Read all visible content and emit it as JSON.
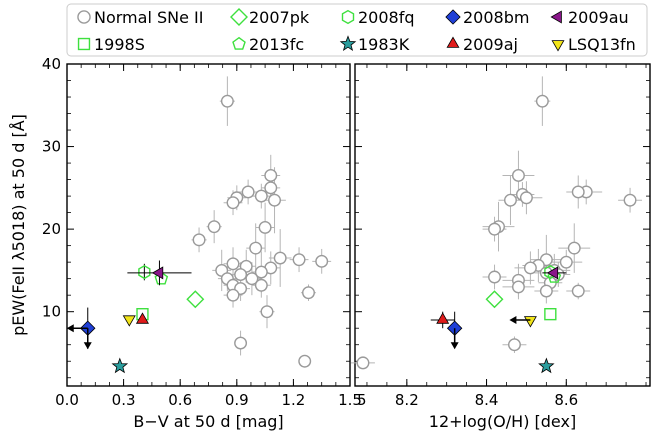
{
  "chart_data": [
    {
      "type": "scatter",
      "xlabel": "B−V at 50 d [mag]",
      "ylabel": "pEW(FeII λ5018) at 50 d [Å]",
      "xlim": [
        0.0,
        1.5
      ],
      "ylim": [
        1.0,
        40.0
      ],
      "xticks": [
        0.0,
        0.3,
        0.6,
        0.9,
        1.2,
        1.5
      ],
      "xtick_labels": [
        "0.0",
        "0.3",
        "0.6",
        "0.9",
        "1.2",
        "1.5"
      ],
      "yticks": [
        10,
        20,
        30,
        40
      ],
      "ytick_labels": [
        "10",
        "20",
        "30",
        "40"
      ],
      "series": [
        {
          "name": "Normal SNe II",
          "marker": "circle-open",
          "color": "#a9a9a9",
          "points": [
            {
              "x": 0.85,
              "y": 35.5,
              "xerr": 0.04,
              "yerr": 3.0
            },
            {
              "x": 1.08,
              "y": 26.5,
              "xerr": 0.05,
              "yerr": 2.5
            },
            {
              "x": 1.08,
              "y": 25.0,
              "xerr": 0.05,
              "yerr": 2.0
            },
            {
              "x": 0.96,
              "y": 24.5,
              "xerr": 0.05,
              "yerr": 1.5
            },
            {
              "x": 1.03,
              "y": 24.0,
              "xerr": 0.06,
              "yerr": 1.5
            },
            {
              "x": 0.9,
              "y": 23.8,
              "xerr": 0.05,
              "yerr": 1.5
            },
            {
              "x": 1.1,
              "y": 23.5,
              "xerr": 0.06,
              "yerr": 4.0
            },
            {
              "x": 0.88,
              "y": 23.2,
              "xerr": 0.05,
              "yerr": 1.5
            },
            {
              "x": 0.78,
              "y": 20.3,
              "xerr": 0.04,
              "yerr": 2.0
            },
            {
              "x": 1.05,
              "y": 20.2,
              "xerr": 0.05,
              "yerr": 3.0
            },
            {
              "x": 0.7,
              "y": 18.7,
              "xerr": 0.04,
              "yerr": 1.5
            },
            {
              "x": 1.0,
              "y": 17.7,
              "xerr": 0.05,
              "yerr": 3.0
            },
            {
              "x": 1.13,
              "y": 16.5,
              "xerr": 0.06,
              "yerr": 3.5
            },
            {
              "x": 1.23,
              "y": 16.3,
              "xerr": 0.05,
              "yerr": 1.5
            },
            {
              "x": 1.35,
              "y": 16.1,
              "xerr": 0.05,
              "yerr": 1.5
            },
            {
              "x": 0.88,
              "y": 15.8,
              "xerr": 0.05,
              "yerr": 2.0
            },
            {
              "x": 0.95,
              "y": 15.5,
              "xerr": 0.05,
              "yerr": 2.0
            },
            {
              "x": 1.08,
              "y": 15.3,
              "xerr": 0.05,
              "yerr": 2.0
            },
            {
              "x": 0.82,
              "y": 15.0,
              "xerr": 0.05,
              "yerr": 2.5
            },
            {
              "x": 1.03,
              "y": 14.8,
              "xerr": 0.05,
              "yerr": 2.5
            },
            {
              "x": 0.92,
              "y": 14.5,
              "xerr": 0.05,
              "yerr": 1.5
            },
            {
              "x": 0.85,
              "y": 14.0,
              "xerr": 0.05,
              "yerr": 1.5
            },
            {
              "x": 0.98,
              "y": 14.0,
              "xerr": 0.05,
              "yerr": 2.0
            },
            {
              "x": 0.88,
              "y": 13.2,
              "xerr": 0.05,
              "yerr": 1.5
            },
            {
              "x": 1.03,
              "y": 13.2,
              "xerr": 0.05,
              "yerr": 1.5
            },
            {
              "x": 0.92,
              "y": 12.8,
              "xerr": 0.05,
              "yerr": 1.5
            },
            {
              "x": 1.28,
              "y": 12.3,
              "xerr": 0.04,
              "yerr": 1.0
            },
            {
              "x": 0.88,
              "y": 12.0,
              "xerr": 0.05,
              "yerr": 1.5
            },
            {
              "x": 1.06,
              "y": 10.0,
              "xerr": 0.04,
              "yerr": 2.0
            },
            {
              "x": 0.92,
              "y": 6.2,
              "xerr": 0.03,
              "yerr": 1.5
            },
            {
              "x": 1.26,
              "y": 4.0,
              "xerr": 0.03,
              "yerr": 0.5
            }
          ]
        },
        {
          "name": "1998S",
          "marker": "square-open",
          "color": "#3ee03e",
          "points": [
            {
              "x": 0.4,
              "y": 9.7,
              "xerr": 0.0,
              "yerr": 0.0
            }
          ]
        },
        {
          "name": "2007pk",
          "marker": "diamond-open",
          "color": "#3ee03e",
          "points": [
            {
              "x": 0.68,
              "y": 11.5,
              "xerr": 0.0,
              "yerr": 0.0
            }
          ]
        },
        {
          "name": "2013fc",
          "marker": "pentagon-open",
          "color": "#3ee03e",
          "points": [
            {
              "x": 0.5,
              "y": 14.0,
              "xerr": 0.0,
              "yerr": 0.0
            }
          ]
        },
        {
          "name": "2008fq",
          "marker": "hexagon-open",
          "color": "#3ee03e",
          "points": [
            {
              "x": 0.41,
              "y": 14.8,
              "xerr": 0.0,
              "yerr": 1.0
            }
          ]
        },
        {
          "name": "1983K",
          "marker": "star",
          "color": "#2a9d9d",
          "points": [
            {
              "x": 0.28,
              "y": 3.4,
              "xerr": 0.0,
              "yerr": 0.0
            }
          ]
        },
        {
          "name": "2008bm",
          "marker": "diamond",
          "color": "#1f3fd6",
          "points": [
            {
              "x": 0.11,
              "y": 8.0,
              "xerr": 0.0,
              "yerr": 2.5
            }
          ]
        },
        {
          "name": "2009aj",
          "marker": "triangle-up",
          "color": "#e01b1b",
          "points": [
            {
              "x": 0.4,
              "y": 9.0,
              "xerr": 0.0,
              "yerr": 0.0
            }
          ]
        },
        {
          "name": "2009au",
          "marker": "triangle-left",
          "color": "#8a168a",
          "points": [
            {
              "x": 0.49,
              "y": 14.7,
              "xerr": 0.17,
              "yerr": 1.5
            }
          ]
        },
        {
          "name": "LSQ13fn",
          "marker": "triangle-down",
          "color": "#f2e51a",
          "points": [
            {
              "x": 0.33,
              "y": 9.1,
              "xerr": 0.0,
              "yerr": 0.0
            }
          ]
        }
      ],
      "limits": [
        {
          "x": 0.11,
          "y": 8.0,
          "direction": "left"
        },
        {
          "x": 0.11,
          "y": 8.0,
          "direction": "down"
        }
      ]
    },
    {
      "type": "scatter",
      "xlabel": "12+log(O/H) [dex]",
      "ylabel": "",
      "xlim": [
        8.07,
        8.81
      ],
      "ylim": [
        1.0,
        40.0
      ],
      "xticks": [
        8.2,
        8.4,
        8.6
      ],
      "xtick_labels": [
        "8.2",
        "8.4",
        "8.6"
      ],
      "extra_tick_label": "5",
      "yticks": [
        10,
        20,
        30,
        40
      ],
      "series": [
        {
          "name": "Normal SNe II",
          "marker": "circle-open",
          "color": "#a9a9a9",
          "points": [
            {
              "x": 8.54,
              "y": 35.5,
              "xerr": 0.02,
              "yerr": 3.0
            },
            {
              "x": 8.48,
              "y": 26.5,
              "xerr": 0.04,
              "yerr": 3.0
            },
            {
              "x": 8.65,
              "y": 24.5,
              "xerr": 0.04,
              "yerr": 1.5
            },
            {
              "x": 8.63,
              "y": 24.5,
              "xerr": 0.03,
              "yerr": 2.0
            },
            {
              "x": 8.49,
              "y": 24.2,
              "xerr": 0.03,
              "yerr": 1.5
            },
            {
              "x": 8.5,
              "y": 23.8,
              "xerr": 0.04,
              "yerr": 2.0
            },
            {
              "x": 8.46,
              "y": 23.5,
              "xerr": 0.03,
              "yerr": 3.0
            },
            {
              "x": 8.76,
              "y": 23.5,
              "xerr": 0.03,
              "yerr": 1.5
            },
            {
              "x": 8.43,
              "y": 20.3,
              "xerr": 0.04,
              "yerr": 3.0
            },
            {
              "x": 8.42,
              "y": 20.0,
              "xerr": 0.03,
              "yerr": 1.5
            },
            {
              "x": 8.62,
              "y": 17.7,
              "xerr": 0.04,
              "yerr": 3.0
            },
            {
              "x": 8.55,
              "y": 16.3,
              "xerr": 0.04,
              "yerr": 3.0
            },
            {
              "x": 8.6,
              "y": 16.0,
              "xerr": 0.04,
              "yerr": 1.5
            },
            {
              "x": 8.53,
              "y": 15.6,
              "xerr": 0.04,
              "yerr": 2.0
            },
            {
              "x": 8.51,
              "y": 15.3,
              "xerr": 0.04,
              "yerr": 2.0
            },
            {
              "x": 8.57,
              "y": 15.0,
              "xerr": 0.04,
              "yerr": 2.0
            },
            {
              "x": 8.55,
              "y": 14.7,
              "xerr": 0.03,
              "yerr": 2.0
            },
            {
              "x": 8.58,
              "y": 14.5,
              "xerr": 0.03,
              "yerr": 1.5
            },
            {
              "x": 8.42,
              "y": 14.2,
              "xerr": 0.03,
              "yerr": 1.5
            },
            {
              "x": 8.48,
              "y": 13.8,
              "xerr": 0.04,
              "yerr": 2.0
            },
            {
              "x": 8.56,
              "y": 13.5,
              "xerr": 0.03,
              "yerr": 1.5
            },
            {
              "x": 8.48,
              "y": 13.0,
              "xerr": 0.04,
              "yerr": 1.5
            },
            {
              "x": 8.55,
              "y": 12.5,
              "xerr": 0.03,
              "yerr": 1.5
            },
            {
              "x": 8.63,
              "y": 12.5,
              "xerr": 0.03,
              "yerr": 1.0
            },
            {
              "x": 8.47,
              "y": 6.0,
              "xerr": 0.03,
              "yerr": 1.0
            },
            {
              "x": 8.09,
              "y": 3.8,
              "xerr": 0.03,
              "yerr": 0.5
            }
          ]
        },
        {
          "name": "1998S",
          "marker": "square-open",
          "color": "#3ee03e",
          "points": [
            {
              "x": 8.56,
              "y": 9.7,
              "xerr": 0.0,
              "yerr": 0.0
            }
          ]
        },
        {
          "name": "2007pk",
          "marker": "diamond-open",
          "color": "#3ee03e",
          "points": [
            {
              "x": 8.42,
              "y": 11.5,
              "xerr": 0.0,
              "yerr": 0.0
            }
          ]
        },
        {
          "name": "2013fc",
          "marker": "pentagon-open",
          "color": "#3ee03e",
          "points": [
            {
              "x": 8.57,
              "y": 14.2,
              "xerr": 0.0,
              "yerr": 0.0
            }
          ]
        },
        {
          "name": "2008fq",
          "marker": "hexagon-open",
          "color": "#3ee03e",
          "points": [
            {
              "x": 8.56,
              "y": 14.8,
              "xerr": 0.0,
              "yerr": 0.0
            }
          ]
        },
        {
          "name": "1983K",
          "marker": "star",
          "color": "#2a9d9d",
          "points": [
            {
              "x": 8.55,
              "y": 3.4,
              "xerr": 0.0,
              "yerr": 0.0
            }
          ]
        },
        {
          "name": "2008bm",
          "marker": "diamond",
          "color": "#1f3fd6",
          "points": [
            {
              "x": 8.32,
              "y": 8.0,
              "xerr": 0.0,
              "yerr": 2.0
            }
          ]
        },
        {
          "name": "2009aj",
          "marker": "triangle-up",
          "color": "#e01b1b",
          "points": [
            {
              "x": 8.29,
              "y": 9.0,
              "xerr": 0.03,
              "yerr": 1.0
            }
          ]
        },
        {
          "name": "2009au",
          "marker": "triangle-left",
          "color": "#8a168a",
          "points": [
            {
              "x": 8.57,
              "y": 14.7,
              "xerr": 0.03,
              "yerr": 0.0
            }
          ]
        },
        {
          "name": "LSQ13fn",
          "marker": "triangle-down",
          "color": "#f2e51a",
          "points": [
            {
              "x": 8.51,
              "y": 9.0,
              "xerr": 0.0,
              "yerr": 0.0
            }
          ]
        }
      ],
      "limits": [
        {
          "x": 8.32,
          "y": 8.0,
          "direction": "down"
        },
        {
          "x": 8.51,
          "y": 9.0,
          "direction": "left"
        }
      ]
    }
  ],
  "legend": {
    "placement": "top",
    "rows": [
      [
        "Normal SNe II",
        "2007pk",
        "2008fq",
        "2008bm",
        "2009au"
      ],
      [
        "1998S",
        "2013fc",
        "1983K",
        "2009aj",
        "LSQ13fn"
      ]
    ]
  }
}
